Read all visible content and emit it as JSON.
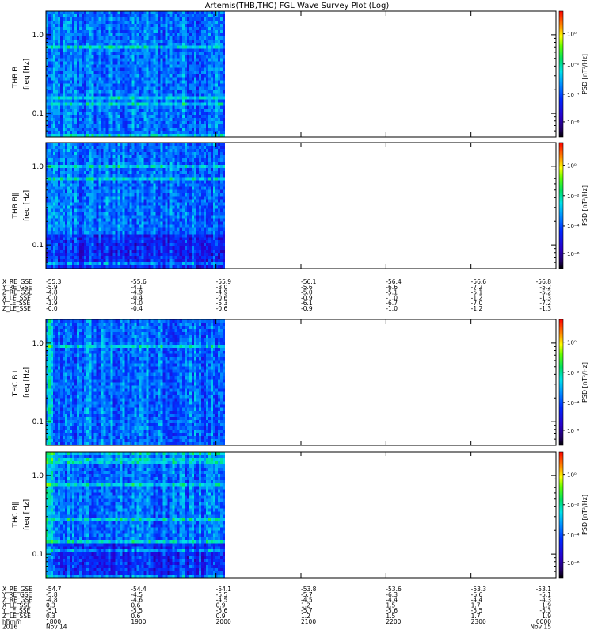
{
  "chart_data": {
    "type": "heatmap",
    "title": "Artemis(THB,THC) FGL Wave Survey Plot (Log)",
    "x_time_range": [
      "1800",
      "0000"
    ],
    "data_extent_end": "2000",
    "panels": [
      {
        "label": "THB B⊥",
        "ylabel": "freq [Hz]",
        "yscale": "log",
        "ylim": [
          0.05,
          2.0
        ],
        "yticks": [
          "1.0",
          "0.1"
        ],
        "clabel": "PSD [nT²/Hz]",
        "cticks": [
          "10⁰",
          "10⁻²",
          "10⁻⁴",
          "10⁻⁶"
        ]
      },
      {
        "label": "THB B∥",
        "ylabel": "freq [Hz]",
        "yscale": "log",
        "ylim": [
          0.05,
          2.0
        ],
        "yticks": [
          "1.0",
          "0.1"
        ],
        "clabel": "PSD [nT²/Hz]",
        "cticks": [
          "10⁰",
          "10⁻²",
          "10⁻⁴",
          "10⁻⁶"
        ]
      },
      {
        "label": "THC B⊥",
        "ylabel": "freq [Hz]",
        "yscale": "log",
        "ylim": [
          0.05,
          2.0
        ],
        "yticks": [
          "1.0",
          "0.1"
        ],
        "clabel": "PSD [nT²/Hz]",
        "cticks": [
          "10⁰",
          "10⁻²",
          "10⁻⁴",
          "10⁻⁶"
        ]
      },
      {
        "label": "THC B∥",
        "ylabel": "freq [Hz]",
        "yscale": "log",
        "ylim": [
          0.05,
          2.0
        ],
        "yticks": [
          "1.0",
          "0.1"
        ],
        "clabel": "PSD [nT²/Hz]",
        "cticks": [
          "10⁰",
          "10⁻²",
          "10⁻⁴",
          "10⁻⁶"
        ]
      }
    ],
    "ephemeris_b": {
      "labels": [
        "X_RE_GSE",
        "Y_RE_GSE",
        "Z_RE_GSE",
        "X_LE_SSE",
        "Y_LE_SSE",
        "Z_LE_SSE"
      ],
      "rows": [
        [
          "-55.3",
          "-55.6",
          "-55.9",
          "-56.1",
          "-56.4",
          "-56.6",
          "-56.8"
        ],
        [
          "-5.9",
          "-4.1",
          "-3.0",
          "-5.6",
          "-6.6",
          "-7.2",
          "-5.2"
        ],
        [
          "-4.8",
          "-4.9",
          "-4.9",
          "-5.0",
          "-5.1",
          "-5.1",
          "-5.2"
        ],
        [
          "-0.0",
          "-0.4",
          "-0.6",
          "-0.9",
          "-1.0",
          "-1.2",
          "-1.3"
        ],
        [
          "-1.9",
          "-4.0",
          "-5.3",
          "-6.1",
          "-6.7",
          "-7.0",
          "-7.2"
        ],
        [
          "-0.0",
          "-0.4",
          "-0.6",
          "-0.9",
          "-1.0",
          "-1.2",
          "-1.3"
        ]
      ]
    },
    "ephemeris_c": {
      "labels": [
        "X_RE_GSE",
        "Y_RE_GSE",
        "Z_RE_GSE",
        "X_LE_SSE",
        "Y_LE_SSE",
        "Z_LE_SSE",
        "hhmm",
        "2016"
      ],
      "rows": [
        [
          "-54.7",
          "-54.4",
          "-54.1",
          "-53.8",
          "-53.6",
          "-53.3",
          "-53.1"
        ],
        [
          "-5.8",
          "-4.5",
          "-5.5",
          "-5.7",
          "-6.3",
          "-6.6",
          "-5.1"
        ],
        [
          "-4.8",
          "-4.6",
          "-4.5",
          "-4.5",
          "-4.4",
          "-4.4",
          "-4.3"
        ],
        [
          "0.3",
          "0.6",
          "0.9",
          "1.2",
          "1.5",
          "1.7",
          "1.9"
        ],
        [
          "-5.1",
          "-5.5",
          "-5.6",
          "-5.7",
          "-5.6",
          "-5.5",
          "-5.3"
        ],
        [
          "0.3",
          "0.6",
          "0.9",
          "1.2",
          "1.5",
          "1.7",
          "1.9"
        ],
        [
          "1800",
          "1900",
          "2000",
          "2100",
          "2200",
          "2300",
          "0000"
        ],
        [
          "Nov 14",
          "",
          "",
          "",
          "",
          "",
          "Nov 15"
        ]
      ]
    }
  }
}
